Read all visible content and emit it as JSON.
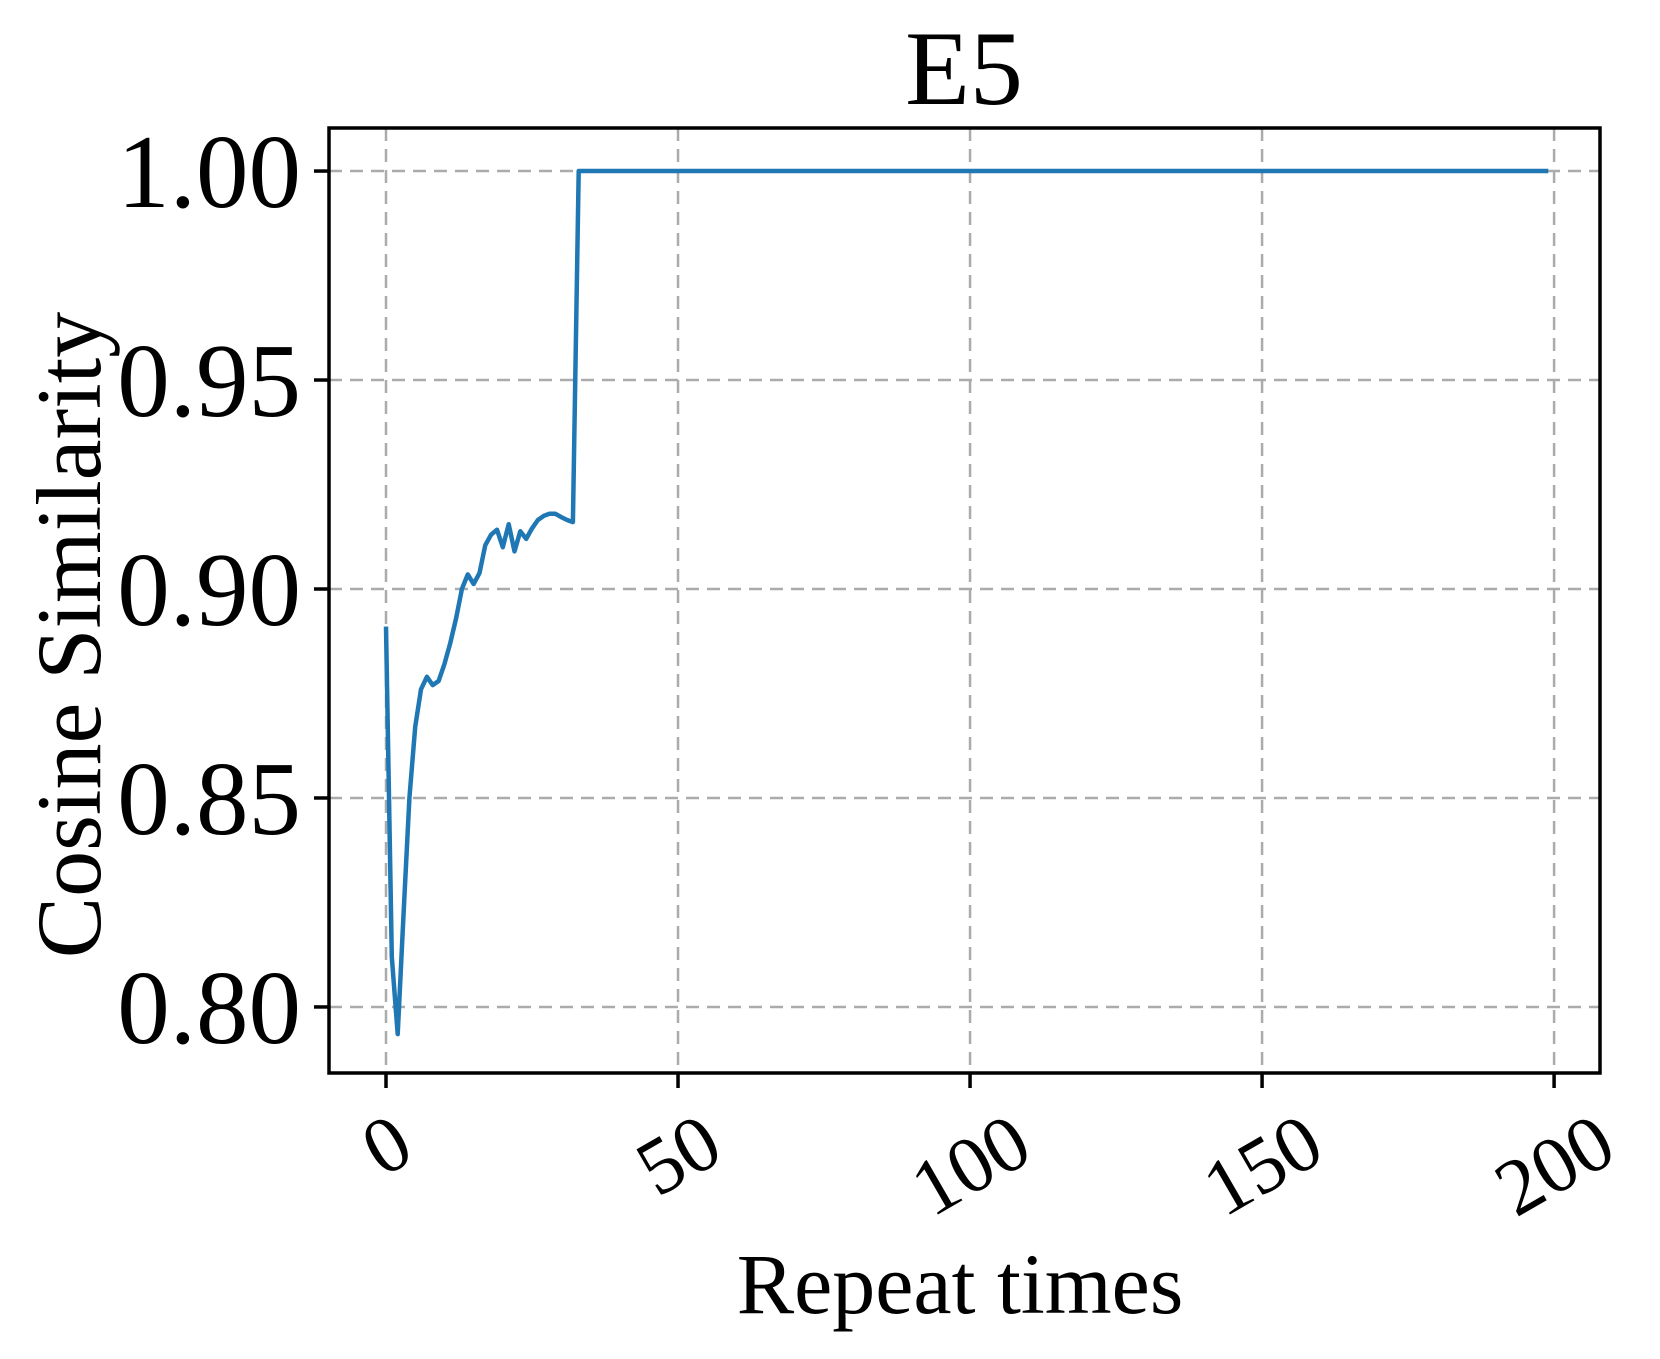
{
  "chart_data": {
    "type": "line",
    "title": "E5",
    "xlabel": "Repeat times",
    "ylabel": "Cosine Similarity",
    "x_ticks": [
      0,
      50,
      100,
      150,
      200
    ],
    "y_ticks": [
      0.8,
      0.85,
      0.9,
      0.95,
      1.0
    ],
    "y_tick_labels": [
      "0.80",
      "0.85",
      "0.90",
      "0.95",
      "1.00"
    ],
    "x_tick_rotation_deg": 30,
    "xlim": [
      -9.76,
      207.86
    ],
    "ylim": [
      0.7842,
      1.0103
    ],
    "grid": true,
    "grid_style": "dashed",
    "legend": "none",
    "colors": {
      "line": "#1f77b4",
      "grid": "#ababab",
      "axis": "#000000",
      "background": "#ffffff"
    },
    "series": [
      {
        "name": "cosine-similarity",
        "color": "#1f77b4",
        "points": [
          [
            0,
            0.891
          ],
          [
            1,
            0.812
          ],
          [
            2,
            0.7935
          ],
          [
            3,
            0.822
          ],
          [
            4,
            0.85
          ],
          [
            5,
            0.867
          ],
          [
            6,
            0.876
          ],
          [
            7,
            0.879
          ],
          [
            8,
            0.877
          ],
          [
            9,
            0.878
          ],
          [
            10,
            0.882
          ],
          [
            11,
            0.887
          ],
          [
            12,
            0.893
          ],
          [
            13,
            0.9
          ],
          [
            14,
            0.9035
          ],
          [
            15,
            0.9012
          ],
          [
            16,
            0.9038
          ],
          [
            17,
            0.9105
          ],
          [
            18,
            0.913
          ],
          [
            19,
            0.9142
          ],
          [
            20,
            0.91
          ],
          [
            21,
            0.9155
          ],
          [
            22,
            0.909
          ],
          [
            23,
            0.9138
          ],
          [
            24,
            0.912
          ],
          [
            25,
            0.9145
          ],
          [
            26,
            0.9165
          ],
          [
            27,
            0.9175
          ],
          [
            28,
            0.918
          ],
          [
            29,
            0.918
          ],
          [
            30,
            0.9172
          ],
          [
            31,
            0.9165
          ],
          [
            32,
            0.916
          ],
          [
            33,
            1.0
          ],
          [
            40,
            1.0
          ],
          [
            50,
            1.0
          ],
          [
            75,
            1.0
          ],
          [
            100,
            1.0
          ],
          [
            125,
            1.0
          ],
          [
            150,
            1.0
          ],
          [
            175,
            1.0
          ],
          [
            199,
            1.0
          ]
        ]
      }
    ]
  }
}
